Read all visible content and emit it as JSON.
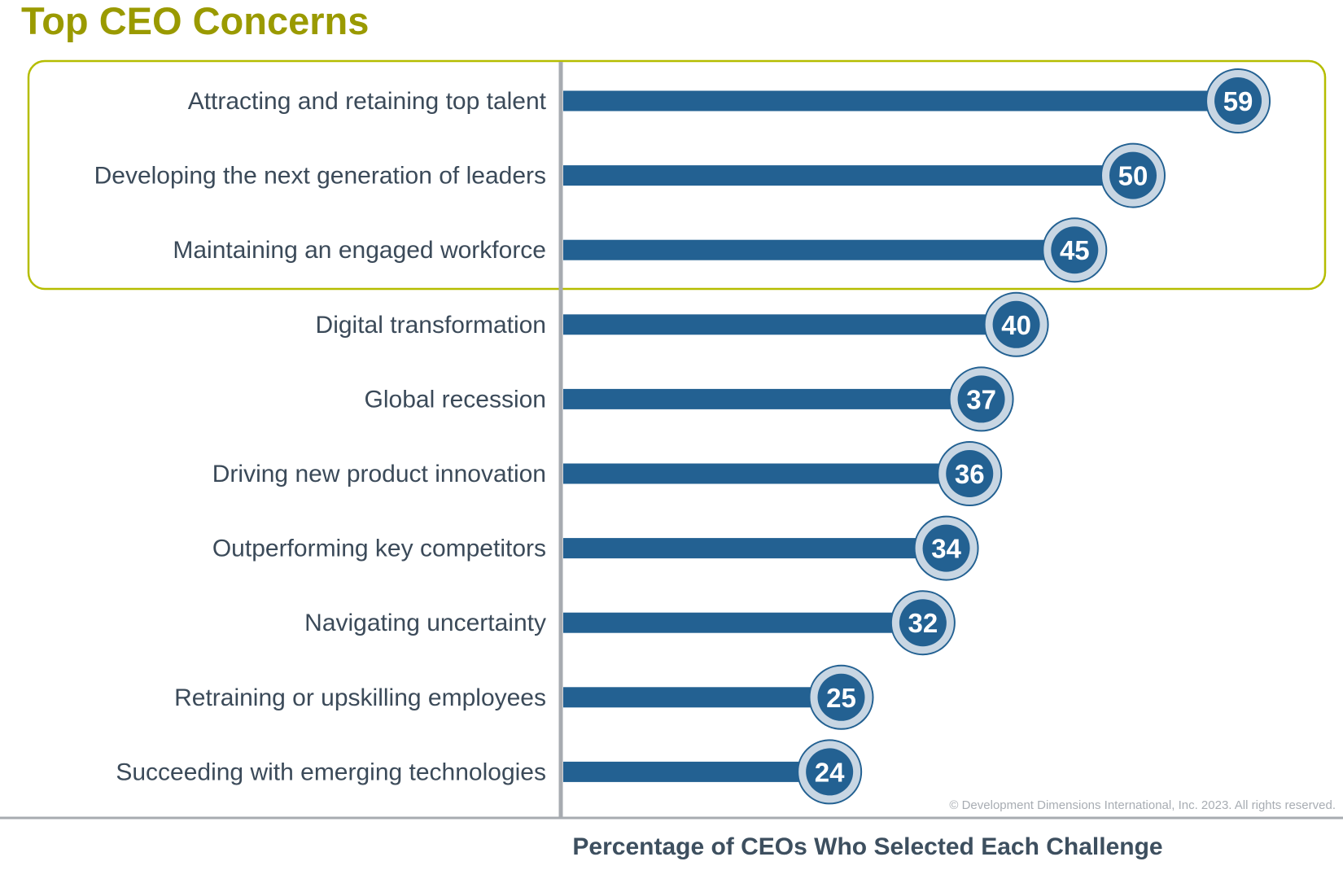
{
  "chart_data": {
    "type": "bar",
    "orientation": "horizontal",
    "title": "Top CEO Concerns",
    "xlabel": "Percentage of CEOs Who Selected Each Challenge",
    "ylabel": "",
    "categories": [
      "Attracting and retaining top talent",
      "Developing the next generation of leaders",
      "Maintaining an engaged workforce",
      "Digital transformation",
      "Global recession",
      "Driving new product innovation",
      "Outperforming key competitors",
      "Navigating uncertainty",
      "Retraining or upskilling employees",
      "Succeeding with emerging technologies"
    ],
    "values": [
      59,
      50,
      45,
      40,
      37,
      36,
      34,
      32,
      25,
      24
    ],
    "highlighted_top": 3,
    "grid": false,
    "data_labels": true,
    "copyright": "© Development Dimensions International, Inc. 2023. All rights reserved.",
    "colors": {
      "bar": "#236192",
      "label_ring": "#c8d6e3",
      "title": "#9a9a00",
      "highlight_box": "#b5bd00",
      "axis": "#a7abb0"
    }
  }
}
